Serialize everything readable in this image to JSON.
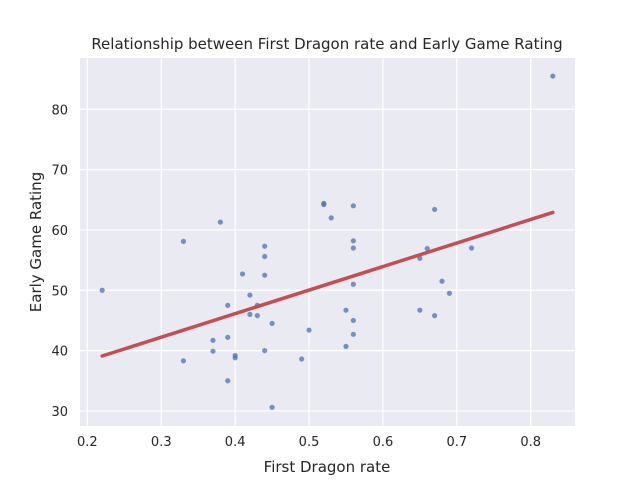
{
  "chart_data": {
    "type": "scatter",
    "title": "Relationship between First Dragon rate and Early Game Rating",
    "xlabel": "First Dragon rate",
    "ylabel": "Early Game Rating",
    "xlim": [
      0.19,
      0.86
    ],
    "ylim": [
      27.5,
      88.5
    ],
    "xticks": [
      "0.2",
      "0.3",
      "0.4",
      "0.5",
      "0.6",
      "0.7",
      "0.8"
    ],
    "yticks": [
      "30",
      "40",
      "50",
      "60",
      "70",
      "80"
    ],
    "grid": true,
    "background": "#eaeaf2",
    "point_color": "#4c72b0",
    "line_color": "#c44e52",
    "series": [
      {
        "type": "scatter",
        "x": [
          0.22,
          0.33,
          0.33,
          0.37,
          0.37,
          0.38,
          0.39,
          0.39,
          0.39,
          0.4,
          0.4,
          0.41,
          0.42,
          0.42,
          0.43,
          0.43,
          0.44,
          0.44,
          0.44,
          0.44,
          0.45,
          0.45,
          0.49,
          0.5,
          0.52,
          0.52,
          0.53,
          0.55,
          0.55,
          0.56,
          0.56,
          0.56,
          0.56,
          0.56,
          0.56,
          0.65,
          0.65,
          0.66,
          0.67,
          0.67,
          0.68,
          0.69,
          0.72,
          0.83
        ],
        "y": [
          50.0,
          58.1,
          38.3,
          41.7,
          39.9,
          61.3,
          47.5,
          42.2,
          35.0,
          39.2,
          38.8,
          52.7,
          49.2,
          46.0,
          47.5,
          45.8,
          57.3,
          55.6,
          52.5,
          40.0,
          44.5,
          30.6,
          38.6,
          43.4,
          64.4,
          64.2,
          62.0,
          46.7,
          40.7,
          64.0,
          58.2,
          57.0,
          51.0,
          45.0,
          42.7,
          55.3,
          46.7,
          56.9,
          63.4,
          45.8,
          51.5,
          49.5,
          57.0,
          85.5
        ]
      },
      {
        "type": "line",
        "x": [
          0.22,
          0.83
        ],
        "y": [
          39.1,
          62.9
        ]
      }
    ]
  }
}
